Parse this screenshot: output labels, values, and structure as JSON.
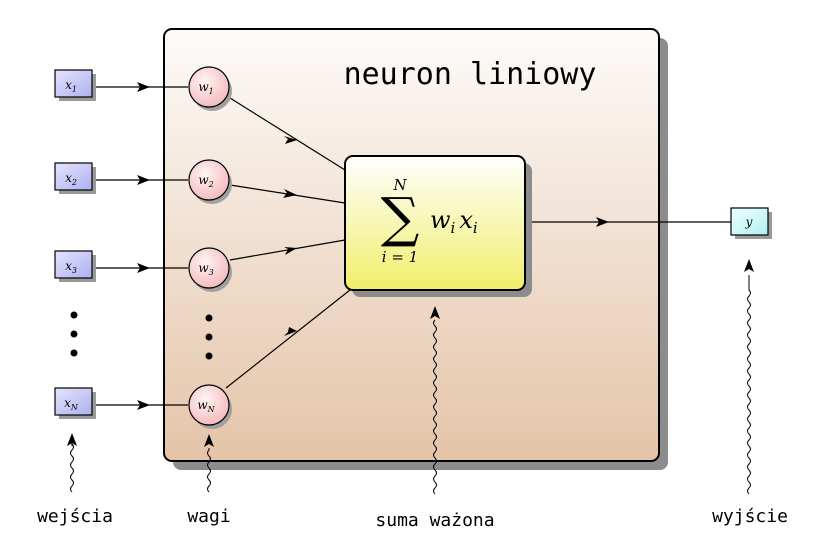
{
  "title": "neuron liniowy",
  "inputs": [
    {
      "label": "x",
      "sub": "1"
    },
    {
      "label": "x",
      "sub": "2"
    },
    {
      "label": "x",
      "sub": "3"
    },
    {
      "label": "x",
      "sub": "N"
    }
  ],
  "weights": [
    {
      "label": "w",
      "sub": "1"
    },
    {
      "label": "w",
      "sub": "2"
    },
    {
      "label": "w",
      "sub": "3"
    },
    {
      "label": "w",
      "sub": "N"
    }
  ],
  "sum_block": {
    "upper": "N",
    "lower": "i = 1",
    "term_w": "w",
    "term_w_sub": "i",
    "term_x": "x",
    "term_x_sub": "i"
  },
  "output": {
    "label": "y"
  },
  "captions": {
    "inputs": "wejścia",
    "weights": "wagi",
    "sum": "suma ważona",
    "output": "wyjście"
  },
  "colors": {
    "input_fill": "#c8c8f4",
    "weight_fill": "#f6c6c8",
    "output_fill": "#c6f4f4",
    "sum_fill_top": "#ffffff",
    "sum_fill_bottom": "#f2f07a",
    "panel_top": "#fdfbf9",
    "panel_bottom": "#e4c4a8"
  }
}
